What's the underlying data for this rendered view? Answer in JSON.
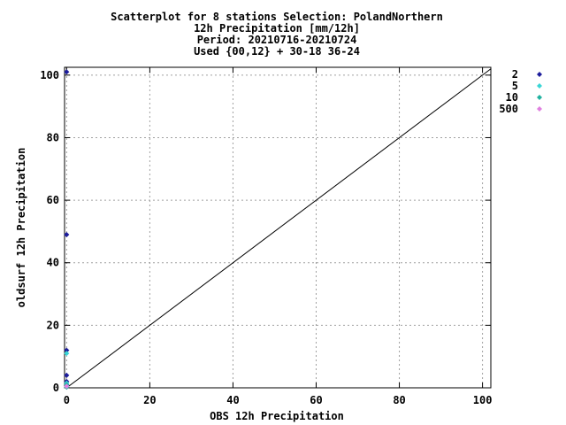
{
  "chart_data": {
    "type": "scatter",
    "title_lines": [
      "Scatterplot for    8 stations Selection: PolandNorthern",
      "12h Precipitation [mm/12h]",
      "Period: 20210716-20210724",
      "Used {00,12} + 30-18 36-24"
    ],
    "xlabel": "OBS 12h Precipitation",
    "ylabel": "oldsurf 12h Precipitation",
    "xlim": [
      -0.5,
      102
    ],
    "ylim": [
      0,
      102.5
    ],
    "x_ticks": [
      0,
      20,
      40,
      60,
      80,
      100
    ],
    "y_ticks": [
      0,
      20,
      40,
      60,
      80,
      100
    ],
    "grid": true,
    "legend_position": "right",
    "reference_line": {
      "from": [
        0,
        0
      ],
      "to": [
        102,
        102
      ]
    },
    "series": [
      {
        "name": "2",
        "color": "#1c1c9c",
        "points": [
          [
            0,
            101
          ],
          [
            0,
            49
          ],
          [
            0,
            12
          ],
          [
            0,
            4
          ],
          [
            0,
            2
          ],
          [
            0,
            1
          ],
          [
            0,
            0.5
          ]
        ]
      },
      {
        "name": "5",
        "color": "#3ad6d6",
        "points": [
          [
            0,
            11
          ],
          [
            0,
            1.5
          ],
          [
            0,
            0.3
          ]
        ]
      },
      {
        "name": "10",
        "color": "#20b2a0",
        "points": [
          [
            0,
            1
          ],
          [
            0,
            0.2
          ]
        ]
      },
      {
        "name": "500",
        "color": "#e080e0",
        "points": [
          [
            0,
            0.5
          ]
        ]
      }
    ]
  }
}
